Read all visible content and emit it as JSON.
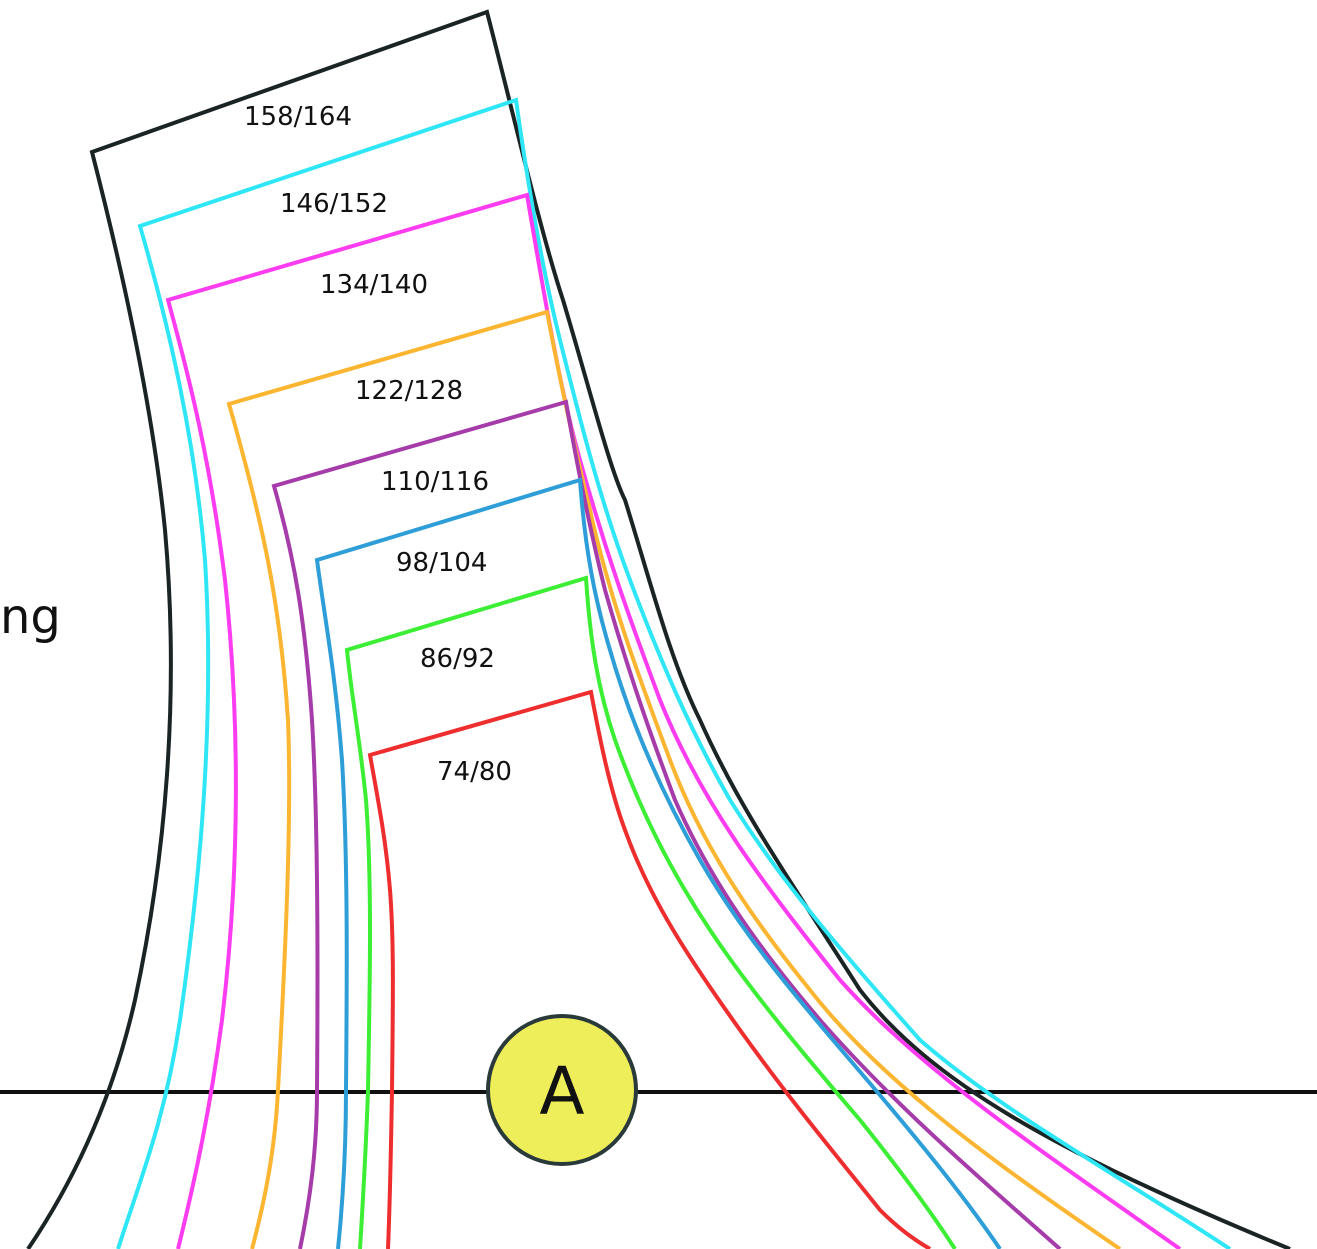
{
  "side_text": "ng",
  "marker": {
    "label": "A",
    "fill": "#eeee5a",
    "stroke": "#2a3a3a"
  },
  "line_color": "#111111",
  "sizes": [
    {
      "label": "158/164",
      "color": "#1b2424"
    },
    {
      "label": "146/152",
      "color": "#2ee6f6"
    },
    {
      "label": "134/140",
      "color": "#fb3cf0"
    },
    {
      "label": "122/128",
      "color": "#fbb531"
    },
    {
      "label": "110/116",
      "color": "#a63caa"
    },
    {
      "label": "98/104",
      "color": "#2d9ed8"
    },
    {
      "label": "86/92",
      "color": "#3cef35"
    },
    {
      "label": "74/80",
      "color": "#ee2e2e"
    }
  ]
}
